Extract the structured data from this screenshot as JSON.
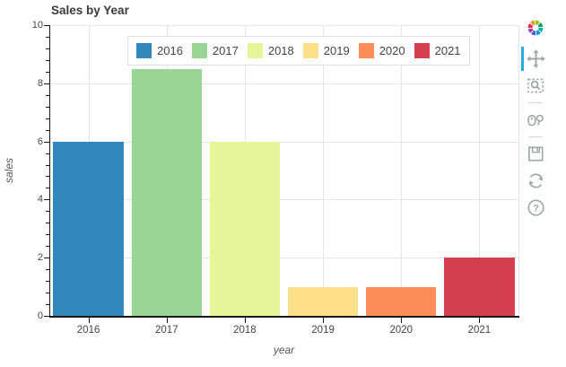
{
  "chart_data": {
    "type": "bar",
    "title": "Sales by Year",
    "categories": [
      "2016",
      "2017",
      "2018",
      "2019",
      "2020",
      "2021"
    ],
    "values": [
      6,
      8.5,
      6,
      1,
      1,
      2
    ],
    "colors": [
      "#3288bd",
      "#99d594",
      "#e6f598",
      "#fee08b",
      "#fc8d59",
      "#d53e4f"
    ],
    "xlabel": "year",
    "ylabel": "sales",
    "ylim": [
      0,
      10
    ],
    "y_major_ticks": [
      0,
      2,
      4,
      6,
      8,
      10
    ],
    "y_minor_tick_step": 0.4,
    "grid": true,
    "legend": {
      "orientation": "horizontal",
      "position": "top",
      "labels": [
        "2016",
        "2017",
        "2018",
        "2019",
        "2020",
        "2021"
      ]
    }
  },
  "toolbar": {
    "logo_icon": "bokeh-logo",
    "active_tool": "pan",
    "active_indicator_color": "#26aae1",
    "icon_color": "#a1a6ab",
    "tools": [
      {
        "name": "pan",
        "icon": "move-icon",
        "active": true
      },
      {
        "name": "box-zoom",
        "icon": "box-zoom-icon",
        "active": false
      },
      {
        "name": "wheel-zoom",
        "icon": "wheel-zoom-icon",
        "active": false
      },
      {
        "name": "save",
        "icon": "save-icon",
        "active": false
      },
      {
        "name": "reset",
        "icon": "reset-icon",
        "active": false
      },
      {
        "name": "help",
        "icon": "help-icon",
        "active": false
      }
    ]
  }
}
